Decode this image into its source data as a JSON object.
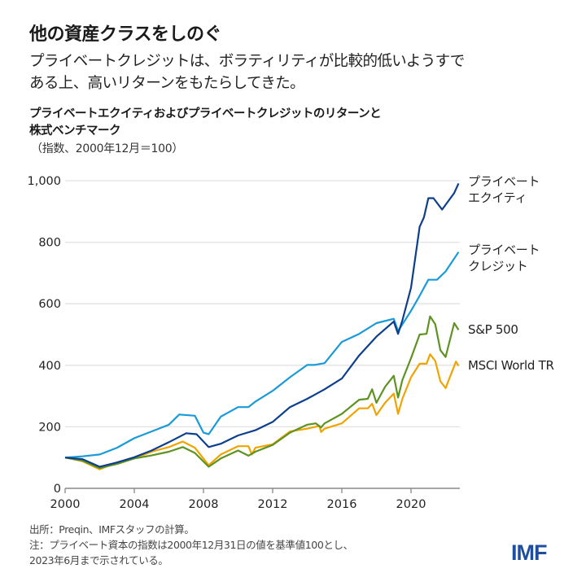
{
  "header": {
    "title": "他の資産クラスをしのぐ",
    "subtitle_line1": "プライベートクレジットは、ボラティリティが比較的低いようすで",
    "subtitle_line2": "ある上、高いリターンをもたらしてきた。"
  },
  "footer": {
    "source": "出所：Preqin、IMFスタッフの計算。",
    "note_line1": "注：プライベート資本の指数は2000年12月31日の値を基準値100とし、",
    "note_line2": "2023年6月まで示されている。",
    "logo": "IMF"
  },
  "chart_data": {
    "type": "line",
    "title_line1": "プライベートエクイティおよびプライベートクレジットのリターンと",
    "title_line2": "株式ベンチマーク",
    "unit": "（指数、2000年12月＝100）",
    "xlim": [
      2000,
      2022.75
    ],
    "ylim": [
      0,
      1000
    ],
    "grid": true,
    "legend": "right, labels at line ends",
    "x_ticks": [
      "2000",
      "2004",
      "2008",
      "2012",
      "2016",
      "2020"
    ],
    "y_ticks": [
      "0",
      "200",
      "400",
      "600",
      "800",
      "1,000"
    ],
    "series": [
      {
        "name": "プライベートエクイティ",
        "label_line1": "プライベート",
        "label_line2": "エクイティ",
        "color": "#0d3f8c",
        "x": [
          2000,
          2001,
          2002,
          2003,
          2004,
          2005,
          2006,
          2007,
          2007.6,
          2008.3,
          2009,
          2010,
          2011,
          2012,
          2013,
          2014,
          2015,
          2016,
          2017,
          2018,
          2019,
          2019.25,
          2019.5,
          2020,
          2020.5,
          2020.75,
          2021,
          2021.3,
          2021.8,
          2022.5,
          2022.75
        ],
        "y": [
          100,
          95,
          70,
          84,
          101,
          123,
          150,
          179,
          176,
          134,
          145,
          172,
          189,
          216,
          264,
          291,
          322,
          357,
          432,
          493,
          542,
          502,
          546,
          652,
          850,
          881,
          943,
          943,
          906,
          960,
          991
        ]
      },
      {
        "name": "プライベートクレジット",
        "label_line1": "プライベート",
        "label_line2": "クレジット",
        "color": "#1a9ad9",
        "x": [
          2000,
          2001,
          2002,
          2003,
          2004,
          2005,
          2006,
          2006.6,
          2007.5,
          2008,
          2008.3,
          2009,
          2010,
          2010.6,
          2011,
          2012,
          2013,
          2014,
          2014.4,
          2015,
          2016,
          2017,
          2018,
          2019,
          2019.25,
          2020,
          2020.5,
          2021,
          2021.5,
          2022,
          2022.75
        ],
        "y": [
          100,
          104,
          110,
          132,
          163,
          185,
          207,
          240,
          236,
          181,
          176,
          233,
          264,
          264,
          282,
          317,
          361,
          401,
          401,
          407,
          476,
          502,
          537,
          551,
          511,
          577,
          626,
          678,
          678,
          705,
          768
        ]
      },
      {
        "name": "S&P 500",
        "label_line1": "S&P 500",
        "color": "#5e9322",
        "x": [
          2000,
          2001,
          2002,
          2003,
          2004,
          2005,
          2006,
          2006.8,
          2007.5,
          2008.3,
          2009,
          2010,
          2010.6,
          2011,
          2012,
          2013,
          2014,
          2014.5,
          2014.8,
          2015,
          2016,
          2017,
          2017.5,
          2017.75,
          2018,
          2018.5,
          2019,
          2019.25,
          2019.5,
          2020,
          2020.5,
          2020.9,
          2021.1,
          2021.4,
          2021.7,
          2022,
          2022.5,
          2022.75
        ],
        "y": [
          100,
          90,
          66,
          79,
          97,
          107,
          119,
          134,
          115,
          70,
          97,
          123,
          106,
          119,
          141,
          181,
          207,
          211,
          198,
          211,
          242,
          288,
          291,
          322,
          278,
          330,
          366,
          295,
          352,
          423,
          500,
          502,
          559,
          533,
          449,
          427,
          537,
          515
        ]
      },
      {
        "name": "MSCI World TR",
        "label_line1": "MSCI World TR",
        "color": "#f0a400",
        "x": [
          2000,
          2001,
          2002,
          2003,
          2004,
          2005,
          2006,
          2006.8,
          2007.5,
          2008.3,
          2009,
          2010,
          2010.6,
          2010.8,
          2011,
          2012,
          2013,
          2014,
          2014.7,
          2014.8,
          2015,
          2016,
          2017,
          2017.5,
          2017.75,
          2018,
          2018.5,
          2019,
          2019.25,
          2019.5,
          2020,
          2020.5,
          2020.9,
          2021.1,
          2021.4,
          2021.7,
          2022,
          2022.6,
          2022.75
        ],
        "y": [
          100,
          88,
          62,
          84,
          97,
          119,
          134,
          152,
          132,
          75,
          110,
          137,
          137,
          110,
          132,
          143,
          185,
          194,
          203,
          183,
          194,
          211,
          260,
          260,
          275,
          238,
          278,
          308,
          242,
          291,
          361,
          405,
          405,
          436,
          414,
          348,
          326,
          412,
          398
        ]
      }
    ]
  }
}
